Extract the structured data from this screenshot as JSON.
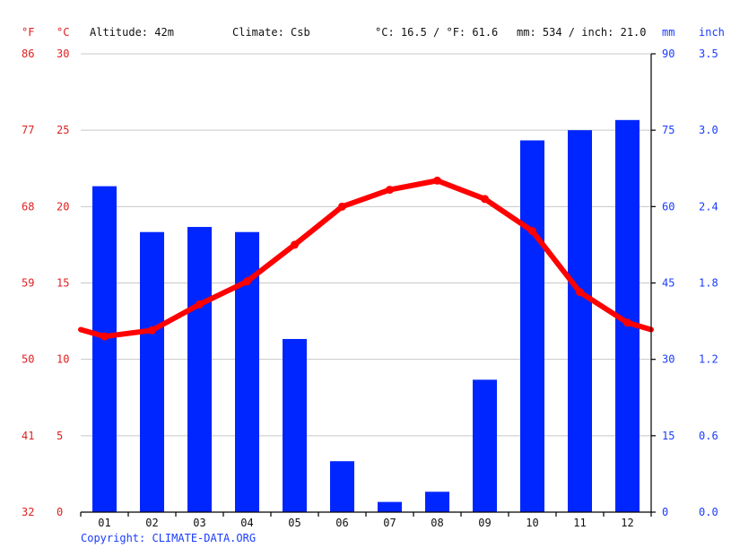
{
  "header": {
    "unit_f": "°F",
    "unit_c": "°C",
    "altitude": "Altitude: 42m",
    "climate": "Climate: Csb",
    "avg_temp": "°C: 16.5 / °F: 61.6",
    "precip_total": "mm: 534 / inch: 21.0",
    "unit_mm": "mm",
    "unit_inch": "inch"
  },
  "copyright": "Copyright: CLIMATE-DATA.ORG",
  "colors": {
    "temperature": "#ff0000",
    "precipitation": "#0026ff",
    "left_axis_text": "#e02020",
    "right_axis_text": "#1a3cff"
  },
  "chart_data": {
    "type": "bar",
    "categories": [
      "01",
      "02",
      "03",
      "04",
      "05",
      "06",
      "07",
      "08",
      "09",
      "10",
      "11",
      "12"
    ],
    "series": [
      {
        "type": "bar",
        "axis": "right",
        "unit": "mm",
        "values": [
          64,
          55,
          56,
          55,
          34,
          10,
          2,
          4,
          26,
          73,
          75,
          77
        ]
      },
      {
        "type": "line",
        "axis": "left",
        "unit": "°C",
        "values": [
          11.5,
          11.9,
          13.6,
          15.1,
          17.5,
          20.0,
          21.1,
          21.7,
          20.5,
          18.4,
          14.4,
          12.4
        ]
      }
    ],
    "y_left_c": {
      "ylim": [
        0,
        30
      ],
      "ticks": [
        "0",
        "5",
        "10",
        "15",
        "20",
        "25",
        "30"
      ]
    },
    "y_left_f": {
      "ticks": [
        "32",
        "41",
        "50",
        "59",
        "68",
        "77",
        "86"
      ]
    },
    "y_right_mm": {
      "ylim": [
        0,
        90
      ],
      "ticks": [
        "0",
        "15",
        "30",
        "45",
        "60",
        "75",
        "90"
      ]
    },
    "y_right_inch": {
      "ticks": [
        "0.0",
        "0.6",
        "1.2",
        "1.8",
        "2.4",
        "3.0",
        "3.5"
      ]
    },
    "grid": true
  }
}
